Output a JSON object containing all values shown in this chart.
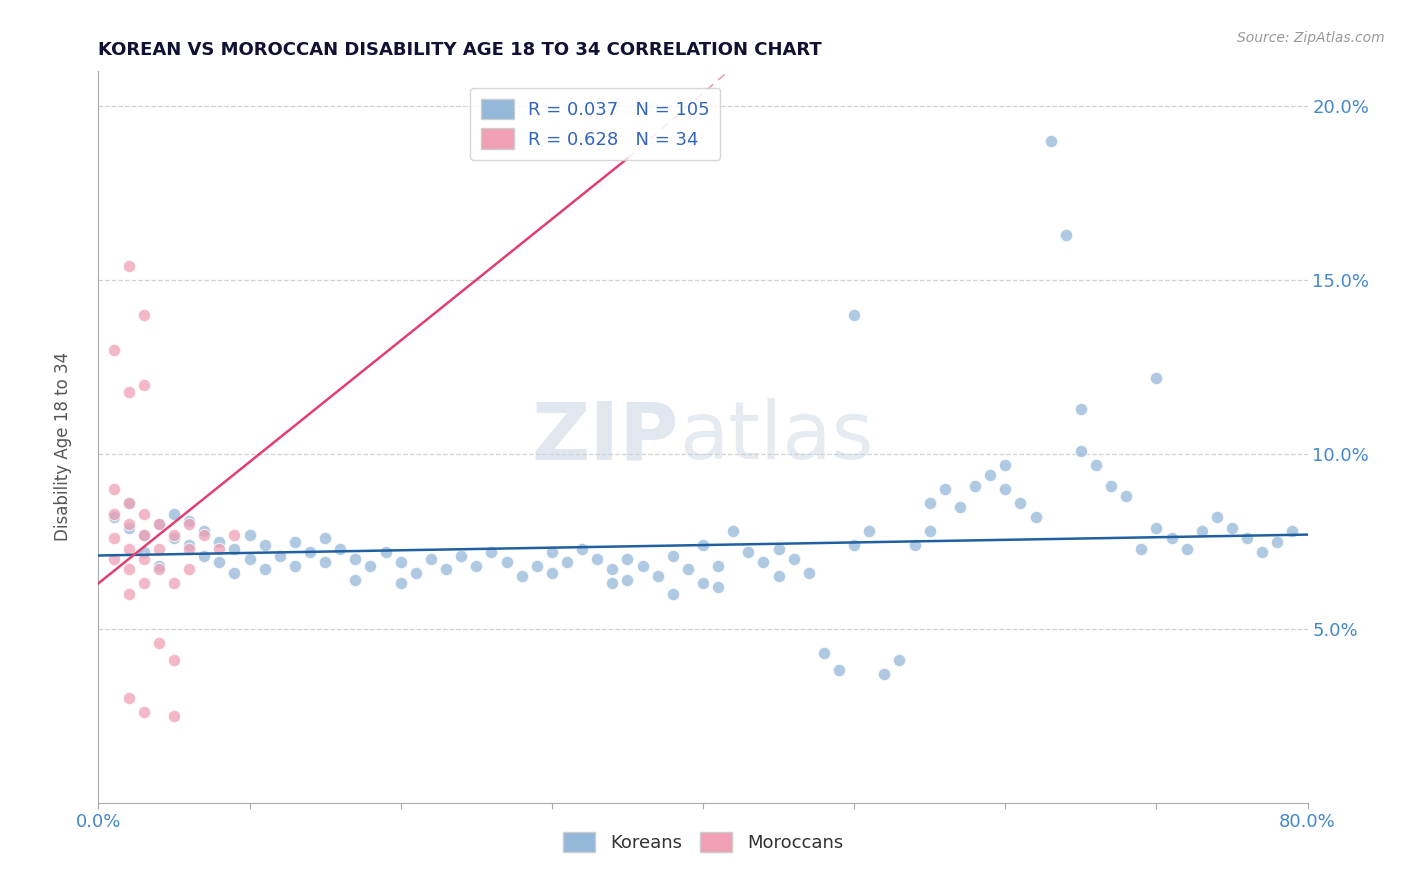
{
  "title": "KOREAN VS MOROCCAN DISABILITY AGE 18 TO 34 CORRELATION CHART",
  "source_text": "Source: ZipAtlas.com",
  "ylabel": "Disability Age 18 to 34",
  "xlim": [
    0.0,
    0.8
  ],
  "ylim": [
    0.0,
    0.21
  ],
  "x_ticks": [
    0.0,
    0.1,
    0.2,
    0.3,
    0.4,
    0.5,
    0.6,
    0.7,
    0.8
  ],
  "y_ticks": [
    0.05,
    0.1,
    0.15,
    0.2
  ],
  "legend_r_korean": "0.037",
  "legend_n_korean": "105",
  "legend_r_moroccan": "0.628",
  "legend_n_moroccan": "34",
  "korean_color": "#93b8d8",
  "moroccan_color": "#f0a0b5",
  "line_korean_color": "#2060a0",
  "line_moroccan_color": "#e04070",
  "korean_scatter": [
    [
      0.01,
      0.082
    ],
    [
      0.02,
      0.086
    ],
    [
      0.02,
      0.079
    ],
    [
      0.03,
      0.077
    ],
    [
      0.03,
      0.072
    ],
    [
      0.04,
      0.08
    ],
    [
      0.04,
      0.068
    ],
    [
      0.05,
      0.083
    ],
    [
      0.05,
      0.076
    ],
    [
      0.06,
      0.081
    ],
    [
      0.06,
      0.074
    ],
    [
      0.07,
      0.078
    ],
    [
      0.07,
      0.071
    ],
    [
      0.08,
      0.075
    ],
    [
      0.08,
      0.069
    ],
    [
      0.09,
      0.073
    ],
    [
      0.09,
      0.066
    ],
    [
      0.1,
      0.077
    ],
    [
      0.1,
      0.07
    ],
    [
      0.11,
      0.074
    ],
    [
      0.11,
      0.067
    ],
    [
      0.12,
      0.071
    ],
    [
      0.13,
      0.075
    ],
    [
      0.13,
      0.068
    ],
    [
      0.14,
      0.072
    ],
    [
      0.15,
      0.076
    ],
    [
      0.15,
      0.069
    ],
    [
      0.16,
      0.073
    ],
    [
      0.17,
      0.07
    ],
    [
      0.17,
      0.064
    ],
    [
      0.18,
      0.068
    ],
    [
      0.19,
      0.072
    ],
    [
      0.2,
      0.069
    ],
    [
      0.2,
      0.063
    ],
    [
      0.21,
      0.066
    ],
    [
      0.22,
      0.07
    ],
    [
      0.23,
      0.067
    ],
    [
      0.24,
      0.071
    ],
    [
      0.25,
      0.068
    ],
    [
      0.26,
      0.072
    ],
    [
      0.27,
      0.069
    ],
    [
      0.28,
      0.065
    ],
    [
      0.29,
      0.068
    ],
    [
      0.3,
      0.072
    ],
    [
      0.3,
      0.066
    ],
    [
      0.31,
      0.069
    ],
    [
      0.32,
      0.073
    ],
    [
      0.33,
      0.07
    ],
    [
      0.34,
      0.067
    ],
    [
      0.34,
      0.063
    ],
    [
      0.35,
      0.07
    ],
    [
      0.35,
      0.064
    ],
    [
      0.36,
      0.068
    ],
    [
      0.37,
      0.065
    ],
    [
      0.38,
      0.071
    ],
    [
      0.38,
      0.06
    ],
    [
      0.39,
      0.067
    ],
    [
      0.4,
      0.063
    ],
    [
      0.4,
      0.074
    ],
    [
      0.41,
      0.068
    ],
    [
      0.41,
      0.062
    ],
    [
      0.42,
      0.078
    ],
    [
      0.43,
      0.072
    ],
    [
      0.44,
      0.069
    ],
    [
      0.45,
      0.073
    ],
    [
      0.45,
      0.065
    ],
    [
      0.46,
      0.07
    ],
    [
      0.47,
      0.066
    ],
    [
      0.48,
      0.043
    ],
    [
      0.49,
      0.038
    ],
    [
      0.5,
      0.14
    ],
    [
      0.5,
      0.074
    ],
    [
      0.51,
      0.078
    ],
    [
      0.52,
      0.037
    ],
    [
      0.53,
      0.041
    ],
    [
      0.54,
      0.074
    ],
    [
      0.55,
      0.078
    ],
    [
      0.55,
      0.086
    ],
    [
      0.56,
      0.09
    ],
    [
      0.57,
      0.085
    ],
    [
      0.58,
      0.091
    ],
    [
      0.59,
      0.094
    ],
    [
      0.6,
      0.097
    ],
    [
      0.6,
      0.09
    ],
    [
      0.61,
      0.086
    ],
    [
      0.62,
      0.082
    ],
    [
      0.63,
      0.19
    ],
    [
      0.64,
      0.163
    ],
    [
      0.65,
      0.113
    ],
    [
      0.65,
      0.101
    ],
    [
      0.66,
      0.097
    ],
    [
      0.67,
      0.091
    ],
    [
      0.68,
      0.088
    ],
    [
      0.69,
      0.073
    ],
    [
      0.7,
      0.122
    ],
    [
      0.7,
      0.079
    ],
    [
      0.71,
      0.076
    ],
    [
      0.72,
      0.073
    ],
    [
      0.73,
      0.078
    ],
    [
      0.74,
      0.082
    ],
    [
      0.75,
      0.079
    ],
    [
      0.76,
      0.076
    ],
    [
      0.77,
      0.072
    ],
    [
      0.78,
      0.075
    ],
    [
      0.79,
      0.078
    ]
  ],
  "moroccan_scatter": [
    [
      0.01,
      0.09
    ],
    [
      0.01,
      0.083
    ],
    [
      0.01,
      0.076
    ],
    [
      0.01,
      0.07
    ],
    [
      0.01,
      0.13
    ],
    [
      0.02,
      0.086
    ],
    [
      0.02,
      0.08
    ],
    [
      0.02,
      0.073
    ],
    [
      0.02,
      0.067
    ],
    [
      0.02,
      0.118
    ],
    [
      0.02,
      0.06
    ],
    [
      0.02,
      0.154
    ],
    [
      0.02,
      0.03
    ],
    [
      0.03,
      0.083
    ],
    [
      0.03,
      0.077
    ],
    [
      0.03,
      0.07
    ],
    [
      0.03,
      0.12
    ],
    [
      0.03,
      0.063
    ],
    [
      0.03,
      0.14
    ],
    [
      0.03,
      0.026
    ],
    [
      0.04,
      0.08
    ],
    [
      0.04,
      0.073
    ],
    [
      0.04,
      0.046
    ],
    [
      0.04,
      0.067
    ],
    [
      0.05,
      0.077
    ],
    [
      0.05,
      0.041
    ],
    [
      0.05,
      0.063
    ],
    [
      0.05,
      0.025
    ],
    [
      0.06,
      0.08
    ],
    [
      0.06,
      0.073
    ],
    [
      0.06,
      0.067
    ],
    [
      0.07,
      0.077
    ],
    [
      0.08,
      0.073
    ],
    [
      0.09,
      0.077
    ]
  ],
  "korean_sizes": 80,
  "moroccan_sizes": 80,
  "bg_color": "#ffffff",
  "grid_color": "#cccccc",
  "title_color": "#111133",
  "axis_label_color": "#555555",
  "tick_color": "#4488cc",
  "legend_text_color": "#3366bb"
}
